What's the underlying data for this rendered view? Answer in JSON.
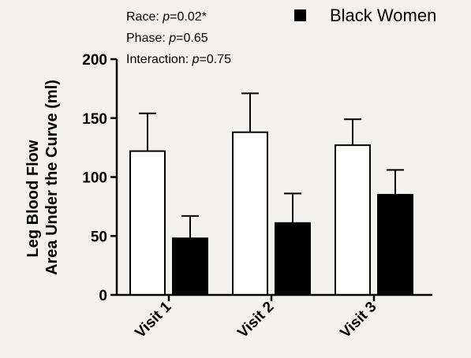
{
  "chart_data": {
    "type": "bar",
    "categories": [
      "Visit 1",
      "Visit 2",
      "Visit 3"
    ],
    "series": [
      {
        "name": "",
        "fill": "#ffffff",
        "values": [
          122,
          138,
          127
        ],
        "errors": [
          32,
          33,
          22
        ]
      },
      {
        "name": "Black Women",
        "fill": "#000000",
        "values": [
          48,
          61,
          85
        ],
        "errors": [
          19,
          25,
          21
        ]
      }
    ],
    "ylabel_lines": [
      "Leg Blood Flow",
      "Area Under the Curve (ml)"
    ],
    "ylim": [
      0,
      200
    ],
    "yticks": [
      0,
      50,
      100,
      150,
      200
    ],
    "legend_position": "top-right",
    "grid": false,
    "annotations": {
      "race_label": "Race: ",
      "race_value": "0.02*",
      "phase_label": "Phase: ",
      "phase_value": "0.65",
      "interaction_label": "Interaction: ",
      "interaction_value": "0.75",
      "p_symbol": "p",
      "equals": "="
    }
  }
}
